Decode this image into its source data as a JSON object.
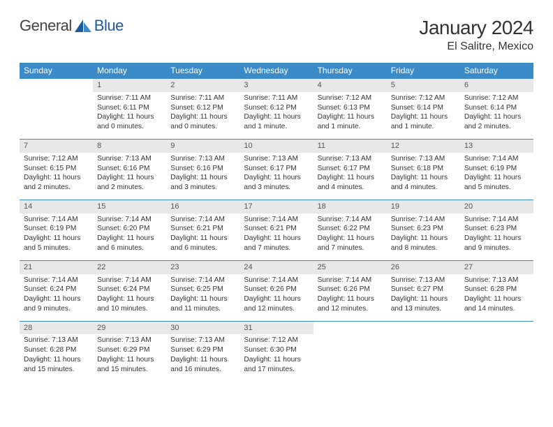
{
  "brand": {
    "part1": "General",
    "part2": "Blue"
  },
  "title": "January 2024",
  "location": "El Salitre, Mexico",
  "dayHeaders": [
    "Sunday",
    "Monday",
    "Tuesday",
    "Wednesday",
    "Thursday",
    "Friday",
    "Saturday"
  ],
  "weeks": [
    {
      "nums": [
        "",
        "1",
        "2",
        "3",
        "4",
        "5",
        "6"
      ],
      "cells": [
        null,
        {
          "sr": "Sunrise: 7:11 AM",
          "ss": "Sunset: 6:11 PM",
          "d1": "Daylight: 11 hours",
          "d2": "and 0 minutes."
        },
        {
          "sr": "Sunrise: 7:11 AM",
          "ss": "Sunset: 6:12 PM",
          "d1": "Daylight: 11 hours",
          "d2": "and 0 minutes."
        },
        {
          "sr": "Sunrise: 7:11 AM",
          "ss": "Sunset: 6:12 PM",
          "d1": "Daylight: 11 hours",
          "d2": "and 1 minute."
        },
        {
          "sr": "Sunrise: 7:12 AM",
          "ss": "Sunset: 6:13 PM",
          "d1": "Daylight: 11 hours",
          "d2": "and 1 minute."
        },
        {
          "sr": "Sunrise: 7:12 AM",
          "ss": "Sunset: 6:14 PM",
          "d1": "Daylight: 11 hours",
          "d2": "and 1 minute."
        },
        {
          "sr": "Sunrise: 7:12 AM",
          "ss": "Sunset: 6:14 PM",
          "d1": "Daylight: 11 hours",
          "d2": "and 2 minutes."
        }
      ]
    },
    {
      "nums": [
        "7",
        "8",
        "9",
        "10",
        "11",
        "12",
        "13"
      ],
      "cells": [
        {
          "sr": "Sunrise: 7:12 AM",
          "ss": "Sunset: 6:15 PM",
          "d1": "Daylight: 11 hours",
          "d2": "and 2 minutes."
        },
        {
          "sr": "Sunrise: 7:13 AM",
          "ss": "Sunset: 6:16 PM",
          "d1": "Daylight: 11 hours",
          "d2": "and 2 minutes."
        },
        {
          "sr": "Sunrise: 7:13 AM",
          "ss": "Sunset: 6:16 PM",
          "d1": "Daylight: 11 hours",
          "d2": "and 3 minutes."
        },
        {
          "sr": "Sunrise: 7:13 AM",
          "ss": "Sunset: 6:17 PM",
          "d1": "Daylight: 11 hours",
          "d2": "and 3 minutes."
        },
        {
          "sr": "Sunrise: 7:13 AM",
          "ss": "Sunset: 6:17 PM",
          "d1": "Daylight: 11 hours",
          "d2": "and 4 minutes."
        },
        {
          "sr": "Sunrise: 7:13 AM",
          "ss": "Sunset: 6:18 PM",
          "d1": "Daylight: 11 hours",
          "d2": "and 4 minutes."
        },
        {
          "sr": "Sunrise: 7:14 AM",
          "ss": "Sunset: 6:19 PM",
          "d1": "Daylight: 11 hours",
          "d2": "and 5 minutes."
        }
      ]
    },
    {
      "nums": [
        "14",
        "15",
        "16",
        "17",
        "18",
        "19",
        "20"
      ],
      "cells": [
        {
          "sr": "Sunrise: 7:14 AM",
          "ss": "Sunset: 6:19 PM",
          "d1": "Daylight: 11 hours",
          "d2": "and 5 minutes."
        },
        {
          "sr": "Sunrise: 7:14 AM",
          "ss": "Sunset: 6:20 PM",
          "d1": "Daylight: 11 hours",
          "d2": "and 6 minutes."
        },
        {
          "sr": "Sunrise: 7:14 AM",
          "ss": "Sunset: 6:21 PM",
          "d1": "Daylight: 11 hours",
          "d2": "and 6 minutes."
        },
        {
          "sr": "Sunrise: 7:14 AM",
          "ss": "Sunset: 6:21 PM",
          "d1": "Daylight: 11 hours",
          "d2": "and 7 minutes."
        },
        {
          "sr": "Sunrise: 7:14 AM",
          "ss": "Sunset: 6:22 PM",
          "d1": "Daylight: 11 hours",
          "d2": "and 7 minutes."
        },
        {
          "sr": "Sunrise: 7:14 AM",
          "ss": "Sunset: 6:23 PM",
          "d1": "Daylight: 11 hours",
          "d2": "and 8 minutes."
        },
        {
          "sr": "Sunrise: 7:14 AM",
          "ss": "Sunset: 6:23 PM",
          "d1": "Daylight: 11 hours",
          "d2": "and 9 minutes."
        }
      ]
    },
    {
      "nums": [
        "21",
        "22",
        "23",
        "24",
        "25",
        "26",
        "27"
      ],
      "cells": [
        {
          "sr": "Sunrise: 7:14 AM",
          "ss": "Sunset: 6:24 PM",
          "d1": "Daylight: 11 hours",
          "d2": "and 9 minutes."
        },
        {
          "sr": "Sunrise: 7:14 AM",
          "ss": "Sunset: 6:24 PM",
          "d1": "Daylight: 11 hours",
          "d2": "and 10 minutes."
        },
        {
          "sr": "Sunrise: 7:14 AM",
          "ss": "Sunset: 6:25 PM",
          "d1": "Daylight: 11 hours",
          "d2": "and 11 minutes."
        },
        {
          "sr": "Sunrise: 7:14 AM",
          "ss": "Sunset: 6:26 PM",
          "d1": "Daylight: 11 hours",
          "d2": "and 12 minutes."
        },
        {
          "sr": "Sunrise: 7:14 AM",
          "ss": "Sunset: 6:26 PM",
          "d1": "Daylight: 11 hours",
          "d2": "and 12 minutes."
        },
        {
          "sr": "Sunrise: 7:13 AM",
          "ss": "Sunset: 6:27 PM",
          "d1": "Daylight: 11 hours",
          "d2": "and 13 minutes."
        },
        {
          "sr": "Sunrise: 7:13 AM",
          "ss": "Sunset: 6:28 PM",
          "d1": "Daylight: 11 hours",
          "d2": "and 14 minutes."
        }
      ]
    },
    {
      "nums": [
        "28",
        "29",
        "30",
        "31",
        "",
        "",
        ""
      ],
      "cells": [
        {
          "sr": "Sunrise: 7:13 AM",
          "ss": "Sunset: 6:28 PM",
          "d1": "Daylight: 11 hours",
          "d2": "and 15 minutes."
        },
        {
          "sr": "Sunrise: 7:13 AM",
          "ss": "Sunset: 6:29 PM",
          "d1": "Daylight: 11 hours",
          "d2": "and 15 minutes."
        },
        {
          "sr": "Sunrise: 7:13 AM",
          "ss": "Sunset: 6:29 PM",
          "d1": "Daylight: 11 hours",
          "d2": "and 16 minutes."
        },
        {
          "sr": "Sunrise: 7:12 AM",
          "ss": "Sunset: 6:30 PM",
          "d1": "Daylight: 11 hours",
          "d2": "and 17 minutes."
        },
        null,
        null,
        null
      ]
    }
  ],
  "colors": {
    "headerBg": "#3b8bc8",
    "dayNumBg": "#e8e8e8",
    "ruleColor": "#3b8bc8"
  }
}
